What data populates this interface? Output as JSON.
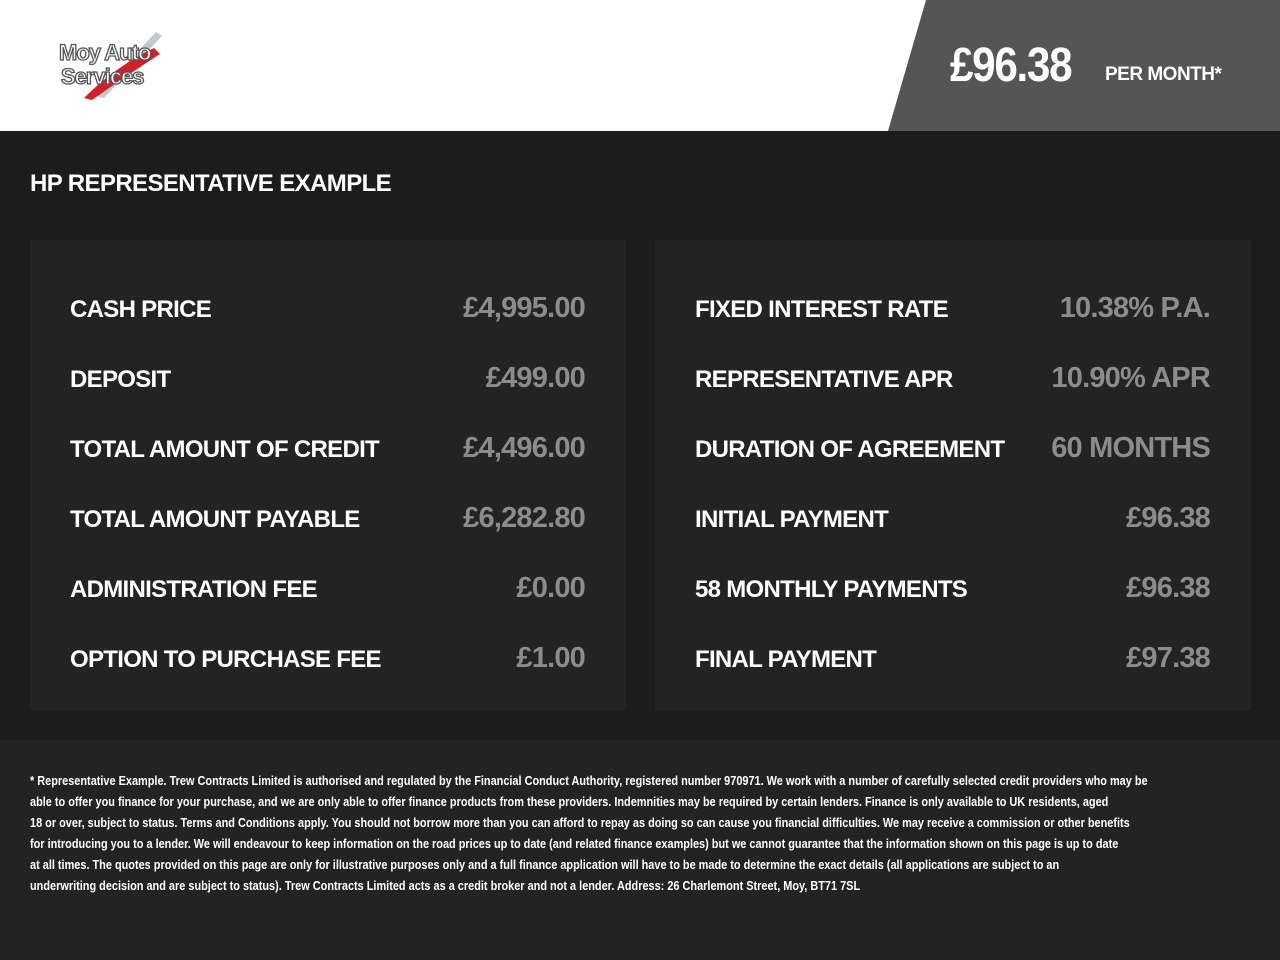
{
  "header": {
    "logo_text": "Moy Auto Services",
    "monthly_price": "£96.38",
    "per_month_label": "PER MONTH*",
    "panel_color": "#555555"
  },
  "title": "HP REPRESENTATIVE EXAMPLE",
  "left_card": [
    {
      "label": "CASH PRICE",
      "value": "£4,995.00"
    },
    {
      "label": "DEPOSIT",
      "value": "£499.00"
    },
    {
      "label": "TOTAL AMOUNT OF CREDIT",
      "value": "£4,496.00"
    },
    {
      "label": "TOTAL AMOUNT PAYABLE",
      "value": "£6,282.80"
    },
    {
      "label": "ADMINISTRATION FEE",
      "value": "£0.00"
    },
    {
      "label": "OPTION TO PURCHASE FEE",
      "value": "£1.00"
    }
  ],
  "right_card": [
    {
      "label": "FIXED INTEREST RATE",
      "value": "10.38% P.A."
    },
    {
      "label": "REPRESENTATIVE APR",
      "value": "10.90% APR"
    },
    {
      "label": "DURATION OF AGREEMENT",
      "value": "60 MONTHS"
    },
    {
      "label": "INITIAL PAYMENT",
      "value": "£96.38"
    },
    {
      "label": "58 MONTHLY PAYMENTS",
      "value": "£96.38"
    },
    {
      "label": "FINAL PAYMENT",
      "value": "£97.38"
    }
  ],
  "footer": {
    "lines": [
      "* Representative Example. Trew Contracts Limited is authorised and regulated by the Financial Conduct Authority, registered number 970971. We work with a number of carefully selected credit providers who may be",
      "able to offer you finance for your purchase, and we are only able to offer finance products from these providers. Indemnities may be required by certain lenders. Finance is only available to UK residents, aged",
      "18 or over, subject to status. Terms and Conditions apply. You should not borrow more than you can afford to repay as doing so can cause you financial difficulties. We may receive a commission or other benefits",
      "for introducing you to a lender. We will endeavour to keep information on the road prices up to date (and related finance examples) but we cannot guarantee that the information shown on this page is up to date",
      "at all times. The quotes provided on this page are only for illustrative purposes only and a full finance application will have to be made to determine the exact details (all applications are subject to an",
      "underwriting decision and are subject to status). Trew Contracts Limited acts as a credit broker and not a lender. Address: 26 Charlemont Street, Moy, BT71 7SL"
    ]
  }
}
